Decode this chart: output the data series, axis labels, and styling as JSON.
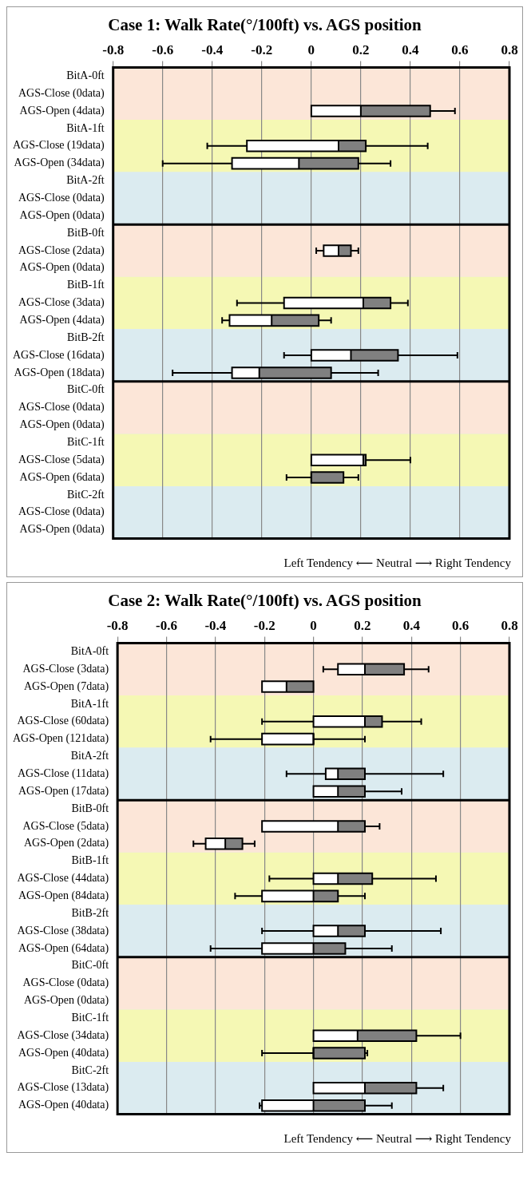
{
  "chart_data": [
    {
      "type": "box",
      "orientation": "horizontal",
      "title": "Case 1: Walk Rate(°/100ft) vs. AGS position",
      "xlabel": "Left Tendency ⟵ Neutral ⟶ Right Tendency",
      "categories": [
        "BitA-0ft",
        "AGS-Close (0data)",
        "AGS-Open (4data)",
        "BitA-1ft",
        "AGS-Close (19data)",
        "AGS-Open (34data)",
        "BitA-2ft",
        "AGS-Close (0data)",
        "AGS-Open (0data)",
        "BitB-0ft",
        "AGS-Close (2data)",
        "AGS-Open (0data)",
        "BitB-1ft",
        "AGS-Close (3data)",
        "AGS-Open (4data)",
        "BitB-2ft",
        "AGS-Close (16data)",
        "AGS-Open (18data)",
        "BitC-0ft",
        "AGS-Close (0data)",
        "AGS-Open (0data)",
        "BitC-1ft",
        "AGS-Close (5data)",
        "AGS-Open (6data)",
        "BitC-2ft",
        "AGS-Close (0data)",
        "AGS-Open (0data)"
      ],
      "series": [
        {
          "color": "#808080",
          "boxes": [
            null,
            null,
            {
              "low": 0,
              "q1": 0,
              "median": 0.2,
              "q3": 0.48,
              "high": 0.58
            },
            null,
            {
              "low": -0.42,
              "q1": -0.26,
              "median": 0.11,
              "q3": 0.22,
              "high": 0.47
            },
            {
              "low": -0.6,
              "q1": -0.32,
              "median": -0.05,
              "q3": 0.19,
              "high": 0.32
            },
            null,
            null,
            null,
            null,
            {
              "low": 0.02,
              "q1": 0.05,
              "median": 0.11,
              "q3": 0.16,
              "high": 0.19
            },
            null,
            null,
            {
              "low": -0.3,
              "q1": -0.11,
              "median": 0.21,
              "q3": 0.32,
              "high": 0.39
            },
            {
              "low": -0.36,
              "q1": -0.33,
              "median": -0.16,
              "q3": 0.03,
              "high": 0.08
            },
            null,
            {
              "low": -0.11,
              "q1": 0,
              "median": 0.16,
              "q3": 0.35,
              "high": 0.59
            },
            {
              "low": -0.56,
              "q1": -0.32,
              "median": -0.21,
              "q3": 0.08,
              "high": 0.27
            },
            null,
            null,
            null,
            null,
            {
              "low": 0,
              "q1": 0,
              "median": 0.21,
              "q3": 0.22,
              "high": 0.4
            },
            {
              "low": -0.1,
              "q1": 0,
              "median": 0,
              "q3": 0.13,
              "high": 0.19
            },
            null,
            null,
            null
          ]
        }
      ],
      "xlim": [
        -0.8,
        0.8
      ],
      "xticks": [
        -0.8,
        -0.6,
        -0.4,
        -0.2,
        0,
        0.2,
        0.4,
        0.6,
        0.8
      ],
      "grid": "x",
      "bands": [
        {
          "axis": "y",
          "from": "BitA-0ft",
          "to": "BitA-1ft",
          "color": "#fce6d8"
        },
        {
          "axis": "y",
          "from": "BitA-1ft",
          "to": "BitA-2ft",
          "color": "#f5f8b4"
        },
        {
          "axis": "y",
          "from": "BitA-2ft",
          "to": "BitB-0ft",
          "color": "#dbebf0"
        },
        {
          "axis": "y",
          "from": "BitB-0ft",
          "to": "BitB-1ft",
          "color": "#fce6d8"
        },
        {
          "axis": "y",
          "from": "BitB-1ft",
          "to": "BitB-2ft",
          "color": "#f5f8b4"
        },
        {
          "axis": "y",
          "from": "BitB-2ft",
          "to": "BitC-0ft",
          "color": "#dbebf0"
        },
        {
          "axis": "y",
          "from": "BitC-0ft",
          "to": "BitC-1ft",
          "color": "#fce6d8"
        },
        {
          "axis": "y",
          "from": "BitC-1ft",
          "to": "BitC-2ft",
          "color": "#f5f8b4"
        }
      ]
    },
    {
      "type": "box",
      "orientation": "horizontal",
      "title": "Case 2: Walk Rate(°/100ft) vs. AGS position",
      "xlabel": "Left Tendency ⟵ Neutral ⟶ Right Tendency",
      "categories": [
        "BitA-0ft",
        "AGS-Close (3data)",
        "AGS-Open (7data)",
        "BitA-1ft",
        "AGS-Close (60data)",
        "AGS-Open (121data)",
        "BitA-2ft",
        "AGS-Close (11data)",
        "AGS-Open (17data)",
        "BitB-0ft",
        "AGS-Close (5data)",
        "AGS-Open (2data)",
        "BitB-1ft",
        "AGS-Close (44data)",
        "AGS-Open (84data)",
        "BitB-2ft",
        "AGS-Close (38data)",
        "AGS-Open (64data)",
        "BitC-0ft",
        "AGS-Close (0data)",
        "AGS-Open (0data)",
        "BitC-1ft",
        "AGS-Close (34data)",
        "AGS-Open (40data)",
        "BitC-2ft",
        "AGS-Close (13data)",
        "AGS-Open (40data)"
      ],
      "series": [
        {
          "color": "#808080",
          "boxes": [
            null,
            {
              "low": 0.04,
              "q1": 0.1,
              "median": 0.21,
              "q3": 0.37,
              "high": 0.47
            },
            {
              "low": -0.21,
              "q1": -0.21,
              "median": -0.11,
              "q3": 0,
              "high": 0
            },
            null,
            {
              "low": -0.21,
              "q1": 0,
              "median": 0.21,
              "q3": 0.28,
              "high": 0.44
            },
            {
              "low": -0.42,
              "q1": -0.21,
              "median": 0,
              "q3": 0,
              "high": 0.21
            },
            null,
            {
              "low": -0.11,
              "q1": 0.05,
              "median": 0.1,
              "q3": 0.21,
              "high": 0.53
            },
            {
              "low": 0,
              "q1": 0,
              "median": 0.1,
              "q3": 0.21,
              "high": 0.36
            },
            null,
            {
              "low": -0.21,
              "q1": -0.21,
              "median": 0.1,
              "q3": 0.21,
              "high": 0.27
            },
            {
              "low": -0.49,
              "q1": -0.44,
              "median": -0.36,
              "q3": -0.29,
              "high": -0.24
            },
            null,
            {
              "low": -0.18,
              "q1": 0,
              "median": 0.1,
              "q3": 0.24,
              "high": 0.5
            },
            {
              "low": -0.32,
              "q1": -0.21,
              "median": 0,
              "q3": 0.1,
              "high": 0.21
            },
            null,
            {
              "low": -0.21,
              "q1": 0,
              "median": 0.1,
              "q3": 0.21,
              "high": 0.52
            },
            {
              "low": -0.42,
              "q1": -0.21,
              "median": 0,
              "q3": 0.13,
              "high": 0.32
            },
            null,
            null,
            null,
            null,
            {
              "low": 0,
              "q1": 0,
              "median": 0.18,
              "q3": 0.42,
              "high": 0.6
            },
            {
              "low": -0.21,
              "q1": 0,
              "median": 0,
              "q3": 0.21,
              "high": 0.22
            },
            null,
            {
              "low": 0,
              "q1": 0,
              "median": 0.21,
              "q3": 0.42,
              "high": 0.53
            },
            {
              "low": -0.22,
              "q1": -0.21,
              "median": 0,
              "q3": 0.21,
              "high": 0.32
            }
          ]
        }
      ],
      "xlim": [
        -0.8,
        0.8
      ],
      "xticks": [
        -0.8,
        -0.6,
        -0.4,
        -0.2,
        0,
        0.2,
        0.4,
        0.6,
        0.8
      ],
      "grid": "x",
      "bands": [
        {
          "axis": "y",
          "from": "BitA-0ft",
          "to": "BitA-1ft",
          "color": "#fce6d8"
        },
        {
          "axis": "y",
          "from": "BitA-1ft",
          "to": "BitA-2ft",
          "color": "#f5f8b4"
        },
        {
          "axis": "y",
          "from": "BitA-2ft",
          "to": "BitB-0ft",
          "color": "#dbebf0"
        },
        {
          "axis": "y",
          "from": "BitB-0ft",
          "to": "BitB-1ft",
          "color": "#fce6d8"
        },
        {
          "axis": "y",
          "from": "BitB-1ft",
          "to": "BitB-2ft",
          "color": "#f5f8b4"
        },
        {
          "axis": "y",
          "from": "BitB-2ft",
          "to": "BitC-0ft",
          "color": "#dbebf0"
        },
        {
          "axis": "y",
          "from": "BitC-0ft",
          "to": "BitC-1ft",
          "color": "#fce6d8"
        },
        {
          "axis": "y",
          "from": "BitC-1ft",
          "to": "BitC-2ft",
          "color": "#f5f8b4"
        }
      ]
    }
  ]
}
